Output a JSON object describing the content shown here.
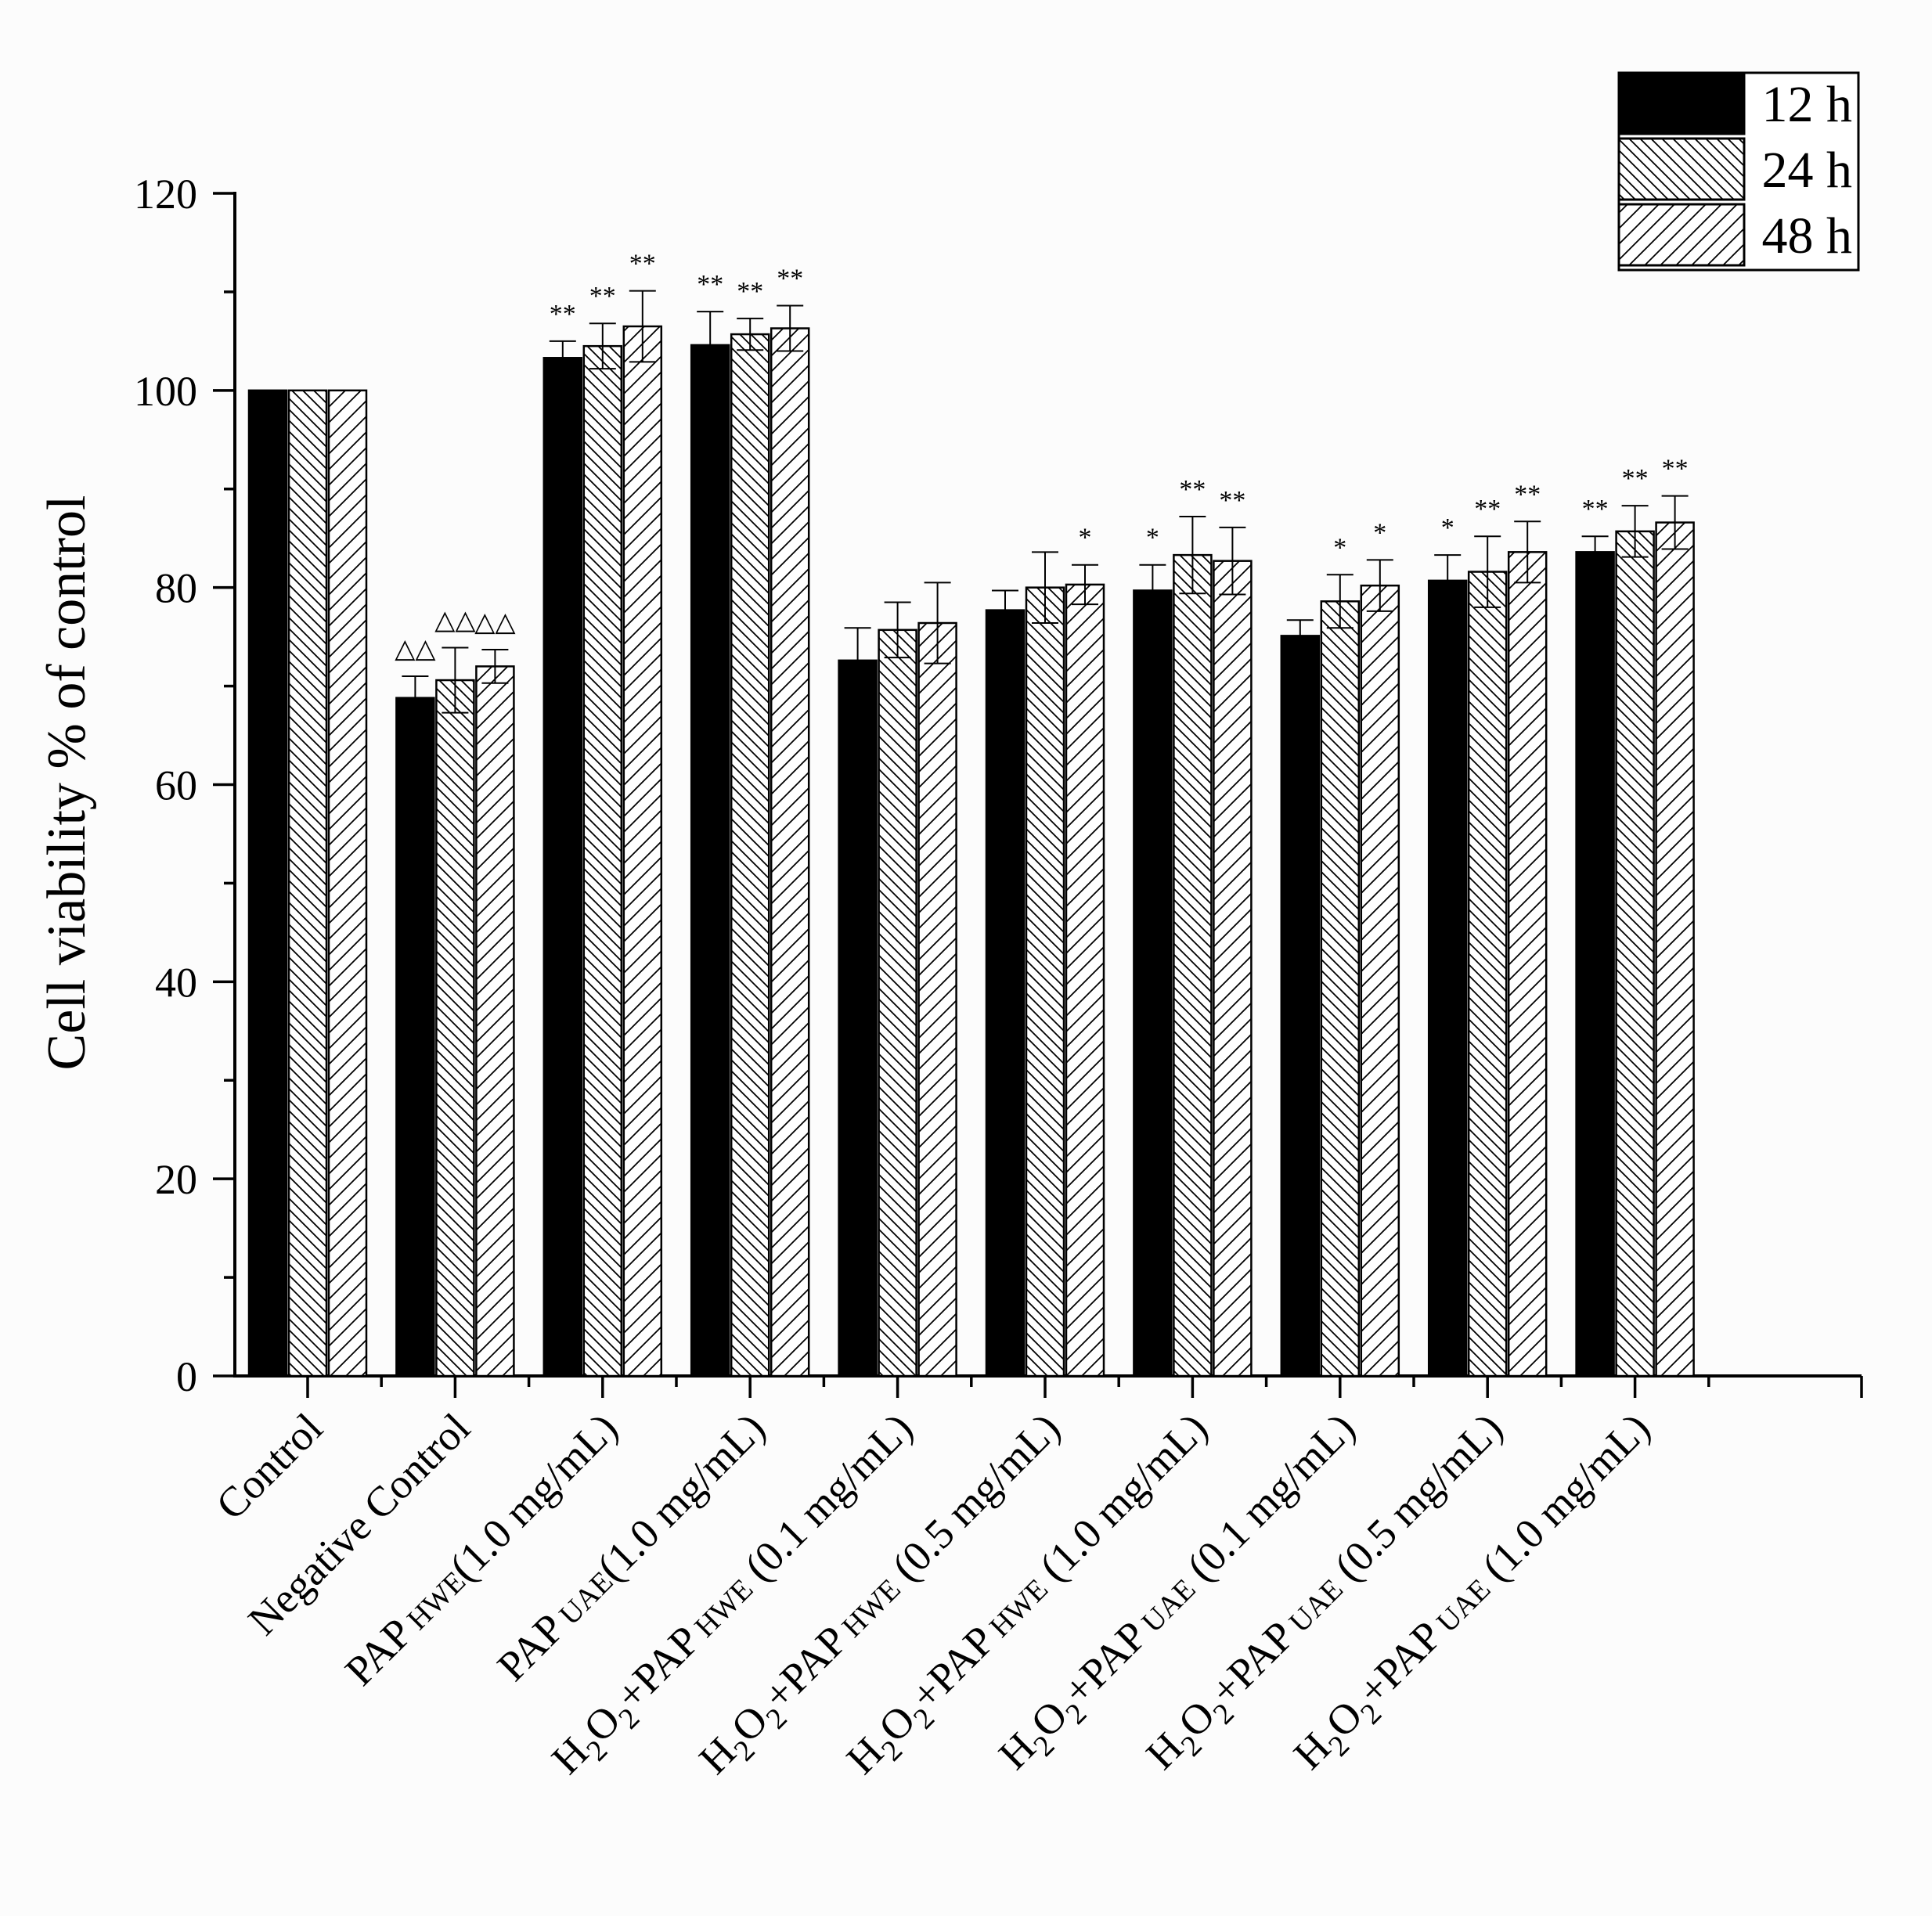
{
  "chart_data": {
    "type": "bar",
    "title": "",
    "xlabel": "",
    "ylabel": "Cell viability % of control",
    "ylim": [
      0,
      120
    ],
    "yticks": [
      0,
      20,
      40,
      60,
      80,
      100,
      120
    ],
    "legend_position": "top-right",
    "categories": [
      {
        "main": "Control",
        "sub": "",
        "conc": ""
      },
      {
        "main": "Negative Control",
        "sub": "",
        "conc": ""
      },
      {
        "main": "PAP",
        "sub": "HWE",
        "conc": "(1.0 mg/mL)"
      },
      {
        "main": "PAP",
        "sub": "UAE",
        "conc": "(1.0 mg/mL)"
      },
      {
        "main": "H2O2+PAP",
        "sub": "HWE",
        "conc": " (0.1 mg/mL)"
      },
      {
        "main": "H2O2+PAP",
        "sub": "HWE",
        "conc": " (0.5 mg/mL)"
      },
      {
        "main": "H2O2+PAP",
        "sub": "HWE",
        "conc": " (1.0 mg/mL)"
      },
      {
        "main": "H2O2+PAP",
        "sub": "UAE",
        "conc": " (0.1 mg/mL)"
      },
      {
        "main": "H2O2+PAP",
        "sub": "UAE",
        "conc": " (0.5 mg/mL)"
      },
      {
        "main": "H2O2+PAP",
        "sub": "UAE",
        "conc": " (1.0 mg/mL)"
      }
    ],
    "series": [
      {
        "name": "12 h",
        "fill": "solid",
        "values": [
          100,
          68.8,
          103.3,
          104.6,
          72.6,
          77.7,
          79.7,
          75.1,
          80.7,
          83.6
        ],
        "errors": [
          0,
          2.2,
          1.7,
          3.4,
          3.3,
          2.0,
          2.6,
          1.6,
          2.6,
          1.6
        ],
        "markers": [
          "",
          "△△",
          "**",
          "**",
          "",
          "",
          "*",
          "",
          "*",
          "**"
        ]
      },
      {
        "name": "24 h",
        "fill": "back-hatch",
        "values": [
          100,
          70.6,
          104.5,
          105.7,
          75.7,
          80.0,
          83.3,
          78.6,
          81.6,
          85.7
        ],
        "errors": [
          0,
          3.3,
          2.3,
          1.6,
          2.8,
          3.6,
          3.9,
          2.7,
          3.6,
          2.6
        ],
        "markers": [
          "",
          "△△",
          "**",
          "**",
          "",
          "",
          "**",
          "*",
          "**",
          "**"
        ]
      },
      {
        "name": "48 h",
        "fill": "forward-hatch",
        "values": [
          100,
          72.0,
          106.5,
          106.3,
          76.4,
          80.3,
          82.7,
          80.2,
          83.6,
          86.6
        ],
        "errors": [
          0,
          1.7,
          3.6,
          2.3,
          4.1,
          2.0,
          3.4,
          2.6,
          3.1,
          2.7
        ],
        "markers": [
          "",
          "△△",
          "**",
          "**",
          "",
          "*",
          "**",
          "*",
          "**",
          "**"
        ]
      }
    ]
  }
}
